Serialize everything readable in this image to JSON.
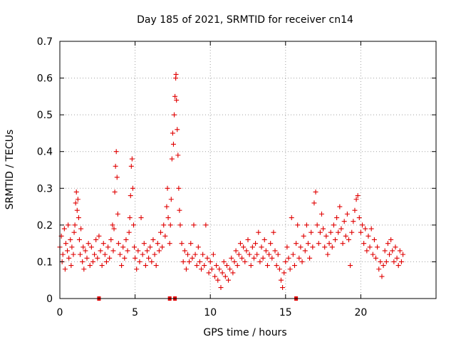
{
  "chart_data": {
    "type": "scatter",
    "title": "Day 185 of 2021, SRMTID for receiver cn14",
    "xlabel": "GPS time / hours",
    "ylabel": "SRMTID / TECUs",
    "xlim": [
      0,
      25
    ],
    "ylim": [
      0,
      0.7
    ],
    "xticks": [
      0,
      5,
      10,
      15,
      20
    ],
    "yticks": [
      0,
      0.1,
      0.2,
      0.3,
      0.4,
      0.5,
      0.6,
      0.7
    ],
    "xtick_labels": [
      "0",
      "5",
      "10",
      "15",
      "20"
    ],
    "ytick_labels": [
      "0",
      "0.1",
      "0.2",
      "0.3",
      "0.4",
      "0.5",
      "0.6",
      "0.7"
    ],
    "grid": true,
    "marker": "+",
    "color": "#e00000",
    "series": [
      {
        "name": "SRMTID",
        "points": [
          [
            0.0,
            0.14
          ],
          [
            0.1,
            0.17
          ],
          [
            0.15,
            0.1
          ],
          [
            0.2,
            0.12
          ],
          [
            0.3,
            0.19
          ],
          [
            0.35,
            0.08
          ],
          [
            0.4,
            0.15
          ],
          [
            0.5,
            0.13
          ],
          [
            0.55,
            0.2
          ],
          [
            0.6,
            0.11
          ],
          [
            0.7,
            0.16
          ],
          [
            0.75,
            0.09
          ],
          [
            0.8,
            0.14
          ],
          [
            0.9,
            0.12
          ],
          [
            0.95,
            0.18
          ],
          [
            1.0,
            0.2
          ],
          [
            1.05,
            0.26
          ],
          [
            1.1,
            0.29
          ],
          [
            1.15,
            0.24
          ],
          [
            1.2,
            0.27
          ],
          [
            1.25,
            0.22
          ],
          [
            1.3,
            0.16
          ],
          [
            1.35,
            0.12
          ],
          [
            1.4,
            0.19
          ],
          [
            1.5,
            0.1
          ],
          [
            1.55,
            0.14
          ],
          [
            1.6,
            0.08
          ],
          [
            1.7,
            0.13
          ],
          [
            1.8,
            0.11
          ],
          [
            1.9,
            0.15
          ],
          [
            2.0,
            0.09
          ],
          [
            2.1,
            0.14
          ],
          [
            2.2,
            0.1
          ],
          [
            2.3,
            0.12
          ],
          [
            2.4,
            0.16
          ],
          [
            2.5,
            0.11
          ],
          [
            2.6,
            0.17
          ],
          [
            2.7,
            0.13
          ],
          [
            2.8,
            0.09
          ],
          [
            2.9,
            0.15
          ],
          [
            3.0,
            0.12
          ],
          [
            3.1,
            0.1
          ],
          [
            3.2,
            0.14
          ],
          [
            3.3,
            0.11
          ],
          [
            3.4,
            0.16
          ],
          [
            3.5,
            0.2
          ],
          [
            3.55,
            0.13
          ],
          [
            3.6,
            0.19
          ],
          [
            3.65,
            0.29
          ],
          [
            3.7,
            0.36
          ],
          [
            3.75,
            0.4
          ],
          [
            3.8,
            0.33
          ],
          [
            3.85,
            0.23
          ],
          [
            3.9,
            0.15
          ],
          [
            4.0,
            0.12
          ],
          [
            4.1,
            0.09
          ],
          [
            4.2,
            0.14
          ],
          [
            4.3,
            0.11
          ],
          [
            4.4,
            0.16
          ],
          [
            4.5,
            0.13
          ],
          [
            4.6,
            0.18
          ],
          [
            4.65,
            0.22
          ],
          [
            4.7,
            0.28
          ],
          [
            4.75,
            0.36
          ],
          [
            4.8,
            0.38
          ],
          [
            4.85,
            0.3
          ],
          [
            4.9,
            0.2
          ],
          [
            4.95,
            0.14
          ],
          [
            5.0,
            0.11
          ],
          [
            5.1,
            0.08
          ],
          [
            5.2,
            0.13
          ],
          [
            5.3,
            0.1
          ],
          [
            5.4,
            0.22
          ],
          [
            5.5,
            0.12
          ],
          [
            5.6,
            0.15
          ],
          [
            5.7,
            0.09
          ],
          [
            5.8,
            0.13
          ],
          [
            5.9,
            0.11
          ],
          [
            6.0,
            0.14
          ],
          [
            6.1,
            0.1
          ],
          [
            6.2,
            0.16
          ],
          [
            6.3,
            0.12
          ],
          [
            6.4,
            0.09
          ],
          [
            6.5,
            0.15
          ],
          [
            6.6,
            0.13
          ],
          [
            6.7,
            0.18
          ],
          [
            6.8,
            0.14
          ],
          [
            6.9,
            0.2
          ],
          [
            7.0,
            0.17
          ],
          [
            7.1,
            0.25
          ],
          [
            7.15,
            0.3
          ],
          [
            7.2,
            0.22
          ],
          [
            7.3,
            0.15
          ],
          [
            7.35,
            0.2
          ],
          [
            7.4,
            0.27
          ],
          [
            7.45,
            0.38
          ],
          [
            7.5,
            0.45
          ],
          [
            7.55,
            0.42
          ],
          [
            7.6,
            0.5
          ],
          [
            7.65,
            0.55
          ],
          [
            7.7,
            0.6
          ],
          [
            7.72,
            0.61
          ],
          [
            7.75,
            0.54
          ],
          [
            7.8,
            0.46
          ],
          [
            7.85,
            0.39
          ],
          [
            7.9,
            0.3
          ],
          [
            7.95,
            0.24
          ],
          [
            8.0,
            0.2
          ],
          [
            8.1,
            0.15
          ],
          [
            8.2,
            0.1
          ],
          [
            8.3,
            0.13
          ],
          [
            8.4,
            0.08
          ],
          [
            8.5,
            0.12
          ],
          [
            8.6,
            0.1
          ],
          [
            8.7,
            0.15
          ],
          [
            8.8,
            0.11
          ],
          [
            8.9,
            0.2
          ],
          [
            9.0,
            0.12
          ],
          [
            9.1,
            0.09
          ],
          [
            9.2,
            0.14
          ],
          [
            9.3,
            0.1
          ],
          [
            9.4,
            0.08
          ],
          [
            9.5,
            0.12
          ],
          [
            9.6,
            0.09
          ],
          [
            9.7,
            0.2
          ],
          [
            9.8,
            0.11
          ],
          [
            9.9,
            0.07
          ],
          [
            10.0,
            0.1
          ],
          [
            10.1,
            0.08
          ],
          [
            10.2,
            0.12
          ],
          [
            10.3,
            0.06
          ],
          [
            10.4,
            0.09
          ],
          [
            10.5,
            0.05
          ],
          [
            10.6,
            0.08
          ],
          [
            10.7,
            0.03
          ],
          [
            10.8,
            0.07
          ],
          [
            10.9,
            0.1
          ],
          [
            11.0,
            0.06
          ],
          [
            11.1,
            0.09
          ],
          [
            11.2,
            0.05
          ],
          [
            11.3,
            0.08
          ],
          [
            11.4,
            0.11
          ],
          [
            11.5,
            0.07
          ],
          [
            11.6,
            0.1
          ],
          [
            11.7,
            0.13
          ],
          [
            11.8,
            0.09
          ],
          [
            11.9,
            0.12
          ],
          [
            12.0,
            0.15
          ],
          [
            12.1,
            0.11
          ],
          [
            12.2,
            0.14
          ],
          [
            12.3,
            0.1
          ],
          [
            12.4,
            0.13
          ],
          [
            12.5,
            0.16
          ],
          [
            12.6,
            0.12
          ],
          [
            12.7,
            0.09
          ],
          [
            12.8,
            0.14
          ],
          [
            12.9,
            0.11
          ],
          [
            13.0,
            0.15
          ],
          [
            13.1,
            0.12
          ],
          [
            13.2,
            0.18
          ],
          [
            13.3,
            0.1
          ],
          [
            13.4,
            0.14
          ],
          [
            13.5,
            0.11
          ],
          [
            13.6,
            0.16
          ],
          [
            13.7,
            0.13
          ],
          [
            13.8,
            0.09
          ],
          [
            13.9,
            0.12
          ],
          [
            14.0,
            0.15
          ],
          [
            14.1,
            0.11
          ],
          [
            14.2,
            0.18
          ],
          [
            14.3,
            0.13
          ],
          [
            14.4,
            0.09
          ],
          [
            14.5,
            0.12
          ],
          [
            14.6,
            0.08
          ],
          [
            14.7,
            0.05
          ],
          [
            14.8,
            0.03
          ],
          [
            14.9,
            0.07
          ],
          [
            15.0,
            0.1
          ],
          [
            15.1,
            0.14
          ],
          [
            15.2,
            0.11
          ],
          [
            15.3,
            0.08
          ],
          [
            15.4,
            0.22
          ],
          [
            15.5,
            0.12
          ],
          [
            15.6,
            0.09
          ],
          [
            15.7,
            0.15
          ],
          [
            15.8,
            0.2
          ],
          [
            15.9,
            0.11
          ],
          [
            16.0,
            0.14
          ],
          [
            16.1,
            0.1
          ],
          [
            16.2,
            0.17
          ],
          [
            16.3,
            0.13
          ],
          [
            16.4,
            0.2
          ],
          [
            16.5,
            0.15
          ],
          [
            16.6,
            0.11
          ],
          [
            16.7,
            0.18
          ],
          [
            16.8,
            0.14
          ],
          [
            16.9,
            0.26
          ],
          [
            17.0,
            0.29
          ],
          [
            17.1,
            0.2
          ],
          [
            17.2,
            0.15
          ],
          [
            17.3,
            0.18
          ],
          [
            17.4,
            0.23
          ],
          [
            17.5,
            0.19
          ],
          [
            17.6,
            0.14
          ],
          [
            17.7,
            0.17
          ],
          [
            17.8,
            0.12
          ],
          [
            17.9,
            0.15
          ],
          [
            18.0,
            0.18
          ],
          [
            18.1,
            0.14
          ],
          [
            18.2,
            0.2
          ],
          [
            18.3,
            0.16
          ],
          [
            18.4,
            0.22
          ],
          [
            18.5,
            0.18
          ],
          [
            18.6,
            0.25
          ],
          [
            18.7,
            0.19
          ],
          [
            18.8,
            0.15
          ],
          [
            18.9,
            0.21
          ],
          [
            19.0,
            0.17
          ],
          [
            19.1,
            0.23
          ],
          [
            19.2,
            0.16
          ],
          [
            19.3,
            0.09
          ],
          [
            19.4,
            0.18
          ],
          [
            19.5,
            0.21
          ],
          [
            19.6,
            0.24
          ],
          [
            19.7,
            0.27
          ],
          [
            19.8,
            0.28
          ],
          [
            19.9,
            0.22
          ],
          [
            20.0,
            0.18
          ],
          [
            20.1,
            0.2
          ],
          [
            20.2,
            0.15
          ],
          [
            20.3,
            0.19
          ],
          [
            20.4,
            0.13
          ],
          [
            20.5,
            0.17
          ],
          [
            20.6,
            0.14
          ],
          [
            20.7,
            0.19
          ],
          [
            20.8,
            0.12
          ],
          [
            20.9,
            0.16
          ],
          [
            21.0,
            0.11
          ],
          [
            21.1,
            0.14
          ],
          [
            21.2,
            0.08
          ],
          [
            21.3,
            0.1
          ],
          [
            21.4,
            0.06
          ],
          [
            21.5,
            0.09
          ],
          [
            21.6,
            0.13
          ],
          [
            21.7,
            0.1
          ],
          [
            21.8,
            0.15
          ],
          [
            21.9,
            0.12
          ],
          [
            22.0,
            0.16
          ],
          [
            22.1,
            0.13
          ],
          [
            22.2,
            0.1
          ],
          [
            22.3,
            0.14
          ],
          [
            22.4,
            0.11
          ],
          [
            22.5,
            0.09
          ],
          [
            22.6,
            0.13
          ],
          [
            22.7,
            0.1
          ],
          [
            22.8,
            0.12
          ]
        ]
      }
    ],
    "gap_markers_x": [
      2.6,
      7.3,
      7.65,
      15.7
    ]
  }
}
